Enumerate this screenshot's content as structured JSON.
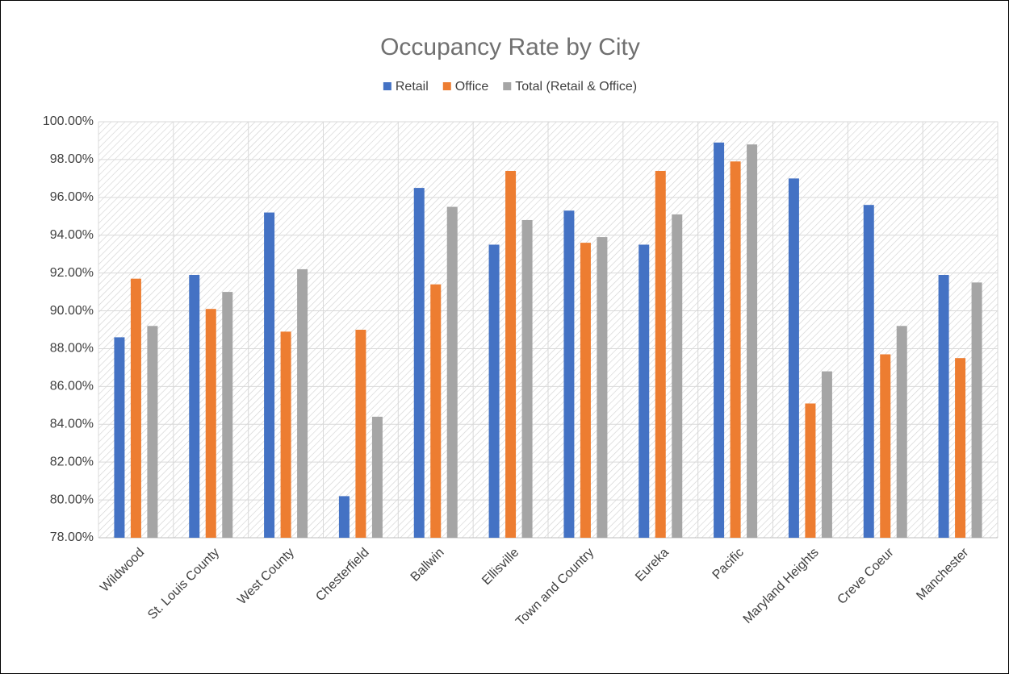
{
  "chart_data": {
    "type": "bar",
    "title": "Occupancy Rate by City",
    "categories": [
      "Wildwood",
      "St. Louis County",
      "West County",
      "Chesterfield",
      "Ballwin",
      "Ellisville",
      "Town and Country",
      "Eureka",
      "Pacific",
      "Maryland Heights",
      "Creve Coeur",
      "Manchester"
    ],
    "series": [
      {
        "name": "Retail",
        "color": "#4472c4",
        "values": [
          88.6,
          91.9,
          95.2,
          80.2,
          96.5,
          93.5,
          95.3,
          93.5,
          98.9,
          97.0,
          95.6,
          91.9
        ]
      },
      {
        "name": "Office",
        "color": "#ed7d31",
        "values": [
          91.7,
          90.1,
          88.9,
          89.0,
          91.4,
          97.4,
          93.6,
          97.4,
          97.9,
          85.1,
          87.7,
          87.5
        ]
      },
      {
        "name": "Total (Retail & Office)",
        "color": "#a5a5a5",
        "values": [
          89.2,
          91.0,
          92.2,
          84.4,
          95.5,
          94.8,
          93.9,
          95.1,
          98.8,
          86.8,
          89.2,
          91.5
        ]
      }
    ],
    "ylim": [
      78,
      100
    ],
    "yticks": [
      {
        "value": 78,
        "label": "78.00%"
      },
      {
        "value": 80,
        "label": "80.00%"
      },
      {
        "value": 82,
        "label": "82.00%"
      },
      {
        "value": 84,
        "label": "84.00%"
      },
      {
        "value": 86,
        "label": "86.00%"
      },
      {
        "value": 88,
        "label": "88.00%"
      },
      {
        "value": 90,
        "label": "90.00%"
      },
      {
        "value": 92,
        "label": "92.00%"
      },
      {
        "value": 94,
        "label": "94.00%"
      },
      {
        "value": 96,
        "label": "96.00%"
      },
      {
        "value": 98,
        "label": "98.00%"
      },
      {
        "value": 100,
        "label": "100.00%"
      }
    ],
    "grid": true,
    "legend": "top"
  }
}
